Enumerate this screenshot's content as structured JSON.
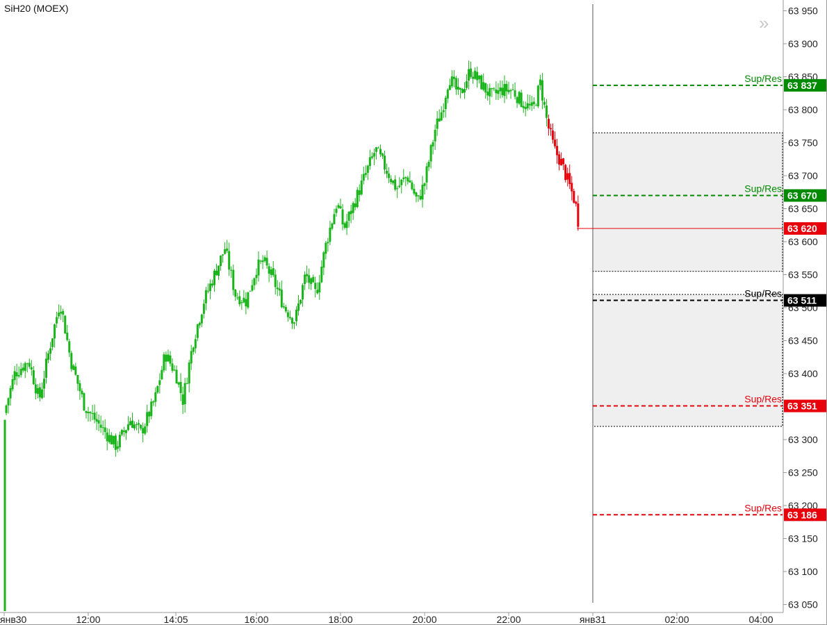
{
  "title": "SiH20 (MOEX)",
  "expand_icon": "double-chevron-right-icon",
  "colors": {
    "up": "#19b31a",
    "down": "#e8000a",
    "grid": "#000000",
    "zone_fill": "#efefef",
    "green_level": "#008a00",
    "red_level": "#e8000a",
    "black_level": "#000000"
  },
  "chart_data": {
    "type": "candlestick",
    "instrument": "SiH20 (MOEX)",
    "ylim": [
      63040,
      63960
    ],
    "y_ticks": [
      "63 050",
      "63 100",
      "63 150",
      "63 200",
      "63 250",
      "63 300",
      "63 350",
      "63 400",
      "63 450",
      "63 500",
      "63 550",
      "63 600",
      "63 650",
      "63 700",
      "63 750",
      "63 800",
      "63 850",
      "63 900",
      "63 950"
    ],
    "y_tick_values": [
      63050,
      63100,
      63150,
      63200,
      63250,
      63300,
      63350,
      63400,
      63450,
      63500,
      63550,
      63600,
      63650,
      63700,
      63750,
      63800,
      63850,
      63900,
      63950
    ],
    "x_ticks": [
      "янв30",
      "12:00",
      "14:05",
      "16:00",
      "18:00",
      "20:00",
      "22:00",
      "янв31",
      "02:00",
      "04:00"
    ],
    "x_tick_times": [
      "10:00",
      "12:00",
      "14:05",
      "16:00",
      "18:00",
      "20:00",
      "22:00",
      "00:00",
      "02:00",
      "04:00"
    ],
    "close_trace": [
      {
        "t": "10:00",
        "v": 63340
      },
      {
        "t": "10:15",
        "v": 63400
      },
      {
        "t": "10:35",
        "v": 63420
      },
      {
        "t": "10:50",
        "v": 63360
      },
      {
        "t": "11:05",
        "v": 63440
      },
      {
        "t": "11:20",
        "v": 63510
      },
      {
        "t": "11:35",
        "v": 63420
      },
      {
        "t": "11:55",
        "v": 63350
      },
      {
        "t": "12:10",
        "v": 63330
      },
      {
        "t": "12:25",
        "v": 63310
      },
      {
        "t": "12:40",
        "v": 63290
      },
      {
        "t": "13:00",
        "v": 63330
      },
      {
        "t": "13:15",
        "v": 63310
      },
      {
        "t": "13:35",
        "v": 63360
      },
      {
        "t": "13:50",
        "v": 63430
      },
      {
        "t": "14:05",
        "v": 63400
      },
      {
        "t": "14:15",
        "v": 63360
      },
      {
        "t": "14:30",
        "v": 63450
      },
      {
        "t": "14:45",
        "v": 63510
      },
      {
        "t": "15:00",
        "v": 63550
      },
      {
        "t": "15:15",
        "v": 63590
      },
      {
        "t": "15:30",
        "v": 63520
      },
      {
        "t": "15:45",
        "v": 63510
      },
      {
        "t": "16:00",
        "v": 63560
      },
      {
        "t": "16:10",
        "v": 63570
      },
      {
        "t": "16:25",
        "v": 63540
      },
      {
        "t": "16:40",
        "v": 63500
      },
      {
        "t": "16:55",
        "v": 63480
      },
      {
        "t": "17:10",
        "v": 63550
      },
      {
        "t": "17:25",
        "v": 63520
      },
      {
        "t": "17:40",
        "v": 63600
      },
      {
        "t": "17:55",
        "v": 63660
      },
      {
        "t": "18:05",
        "v": 63620
      },
      {
        "t": "18:20",
        "v": 63660
      },
      {
        "t": "18:35",
        "v": 63700
      },
      {
        "t": "18:50",
        "v": 63740
      },
      {
        "t": "19:05",
        "v": 63710
      },
      {
        "t": "19:20",
        "v": 63680
      },
      {
        "t": "19:35",
        "v": 63700
      },
      {
        "t": "19:50",
        "v": 63660
      },
      {
        "t": "20:00",
        "v": 63690
      },
      {
        "t": "20:15",
        "v": 63770
      },
      {
        "t": "20:25",
        "v": 63800
      },
      {
        "t": "20:35",
        "v": 63850
      },
      {
        "t": "20:50",
        "v": 63820
      },
      {
        "t": "21:05",
        "v": 63860
      },
      {
        "t": "21:20",
        "v": 63840
      },
      {
        "t": "21:35",
        "v": 63820
      },
      {
        "t": "21:50",
        "v": 63830
      },
      {
        "t": "22:05",
        "v": 63830
      },
      {
        "t": "22:20",
        "v": 63810
      },
      {
        "t": "22:35",
        "v": 63800
      },
      {
        "t": "22:45",
        "v": 63840
      },
      {
        "t": "22:55",
        "v": 63780
      },
      {
        "t": "23:05",
        "v": 63740
      },
      {
        "t": "23:15",
        "v": 63720
      },
      {
        "t": "23:25",
        "v": 63690
      },
      {
        "t": "23:35",
        "v": 63660
      },
      {
        "t": "23:40",
        "v": 63625
      }
    ],
    "last_price": {
      "label": "63 620",
      "value": 63620
    },
    "levels": [
      {
        "name": "Sup/Res",
        "value": 63837,
        "label": "63 837",
        "color": "green"
      },
      {
        "name": "Sup/Res",
        "value": 63670,
        "label": "63 670",
        "color": "green"
      },
      {
        "name": "Sup/Res",
        "value": 63511,
        "label": "63 511",
        "color": "black"
      },
      {
        "name": "Sup/Res",
        "value": 63351,
        "label": "63 351",
        "color": "red"
      },
      {
        "name": "Sup/Res",
        "value": 63186,
        "label": "63 186",
        "color": "red"
      }
    ],
    "zones": [
      {
        "from": 63555,
        "to": 63765
      },
      {
        "from": 63320,
        "to": 63520
      }
    ],
    "current_time_marker": "00:00"
  }
}
